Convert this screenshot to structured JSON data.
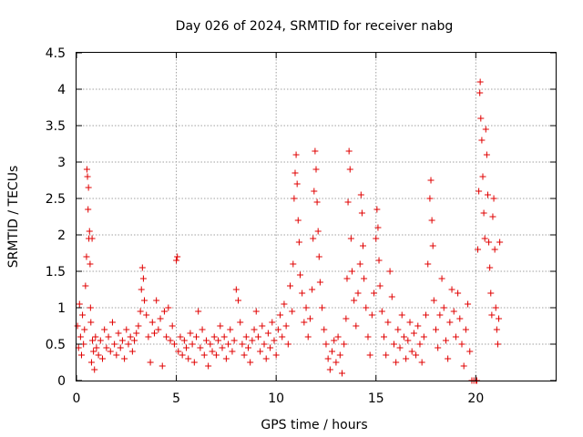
{
  "chart_data": {
    "type": "scatter",
    "title": "Day 026 of 2024, SRMTID for receiver nabg",
    "xlabel": "GPS time / hours",
    "ylabel": "SRMTID / TECUs",
    "xlim": [
      0,
      24
    ],
    "ylim": [
      0,
      4.5
    ],
    "xticks": [
      0,
      5,
      10,
      15,
      20
    ],
    "yticks": [
      0,
      0.5,
      1,
      1.5,
      2,
      2.5,
      3,
      3.5,
      4,
      4.5
    ],
    "xtick_labels": [
      "0",
      "5",
      "10",
      "15",
      "20"
    ],
    "ytick_labels": [
      "0",
      "0.5",
      "1",
      "1.5",
      "2",
      "2.5",
      "3",
      "3.5",
      "4",
      "4.5"
    ],
    "grid": true,
    "marker": "+",
    "color": "#e00000",
    "series": [
      {
        "name": "SRMTID",
        "points": [
          [
            0.05,
            0.75
          ],
          [
            0.1,
            0.45
          ],
          [
            0.15,
            1.05
          ],
          [
            0.2,
            0.6
          ],
          [
            0.25,
            0.35
          ],
          [
            0.3,
            0.9
          ],
          [
            0.35,
            0.5
          ],
          [
            0.4,
            0.7
          ],
          [
            0.45,
            1.3
          ],
          [
            0.5,
            1.7
          ],
          [
            0.52,
            2.9
          ],
          [
            0.55,
            2.8
          ],
          [
            0.58,
            2.35
          ],
          [
            0.6,
            2.65
          ],
          [
            0.62,
            1.95
          ],
          [
            0.65,
            2.05
          ],
          [
            0.68,
            1.6
          ],
          [
            0.7,
            1.0
          ],
          [
            0.72,
            0.8
          ],
          [
            0.75,
            0.25
          ],
          [
            0.78,
            1.95
          ],
          [
            0.8,
            0.55
          ],
          [
            0.85,
            0.4
          ],
          [
            0.9,
            0.15
          ],
          [
            0.95,
            0.6
          ],
          [
            1.0,
            0.45
          ],
          [
            1.1,
            0.35
          ],
          [
            1.2,
            0.55
          ],
          [
            1.3,
            0.3
          ],
          [
            1.4,
            0.7
          ],
          [
            1.5,
            0.45
          ],
          [
            1.6,
            0.6
          ],
          [
            1.7,
            0.4
          ],
          [
            1.8,
            0.8
          ],
          [
            1.9,
            0.5
          ],
          [
            2.0,
            0.35
          ],
          [
            2.1,
            0.65
          ],
          [
            2.2,
            0.45
          ],
          [
            2.3,
            0.55
          ],
          [
            2.4,
            0.3
          ],
          [
            2.5,
            0.7
          ],
          [
            2.6,
            0.5
          ],
          [
            2.7,
            0.6
          ],
          [
            2.8,
            0.4
          ],
          [
            2.9,
            0.55
          ],
          [
            3.0,
            0.65
          ],
          [
            3.1,
            0.75
          ],
          [
            3.2,
            0.95
          ],
          [
            3.25,
            1.25
          ],
          [
            3.3,
            1.55
          ],
          [
            3.35,
            1.4
          ],
          [
            3.4,
            1.1
          ],
          [
            3.5,
            0.9
          ],
          [
            3.6,
            0.6
          ],
          [
            3.7,
            0.25
          ],
          [
            3.8,
            0.8
          ],
          [
            3.9,
            0.65
          ],
          [
            4.0,
            1.1
          ],
          [
            4.1,
            0.7
          ],
          [
            4.2,
            0.85
          ],
          [
            4.3,
            0.2
          ],
          [
            4.4,
            0.95
          ],
          [
            4.5,
            0.6
          ],
          [
            4.6,
            1.0
          ],
          [
            4.7,
            0.55
          ],
          [
            4.8,
            0.75
          ],
          [
            4.9,
            0.5
          ],
          [
            5.0,
            1.65
          ],
          [
            5.05,
            1.7
          ],
          [
            5.1,
            0.4
          ],
          [
            5.2,
            0.6
          ],
          [
            5.3,
            0.35
          ],
          [
            5.4,
            0.55
          ],
          [
            5.5,
            0.45
          ],
          [
            5.6,
            0.3
          ],
          [
            5.7,
            0.65
          ],
          [
            5.8,
            0.5
          ],
          [
            5.9,
            0.25
          ],
          [
            6.0,
            0.6
          ],
          [
            6.1,
            0.95
          ],
          [
            6.2,
            0.45
          ],
          [
            6.3,
            0.7
          ],
          [
            6.4,
            0.35
          ],
          [
            6.5,
            0.55
          ],
          [
            6.6,
            0.2
          ],
          [
            6.7,
            0.5
          ],
          [
            6.8,
            0.4
          ],
          [
            6.9,
            0.6
          ],
          [
            7.0,
            0.35
          ],
          [
            7.1,
            0.55
          ],
          [
            7.2,
            0.75
          ],
          [
            7.3,
            0.45
          ],
          [
            7.4,
            0.6
          ],
          [
            7.5,
            0.3
          ],
          [
            7.6,
            0.5
          ],
          [
            7.7,
            0.7
          ],
          [
            7.8,
            0.4
          ],
          [
            7.9,
            0.55
          ],
          [
            8.0,
            1.25
          ],
          [
            8.1,
            1.1
          ],
          [
            8.2,
            0.8
          ],
          [
            8.3,
            0.5
          ],
          [
            8.4,
            0.35
          ],
          [
            8.5,
            0.6
          ],
          [
            8.6,
            0.45
          ],
          [
            8.7,
            0.25
          ],
          [
            8.8,
            0.55
          ],
          [
            8.9,
            0.7
          ],
          [
            9.0,
            0.95
          ],
          [
            9.1,
            0.6
          ],
          [
            9.2,
            0.4
          ],
          [
            9.3,
            0.75
          ],
          [
            9.4,
            0.5
          ],
          [
            9.5,
            0.3
          ],
          [
            9.6,
            0.65
          ],
          [
            9.7,
            0.45
          ],
          [
            9.8,
            0.8
          ],
          [
            9.9,
            0.55
          ],
          [
            10.0,
            0.35
          ],
          [
            10.1,
            0.7
          ],
          [
            10.2,
            0.9
          ],
          [
            10.3,
            0.6
          ],
          [
            10.4,
            1.05
          ],
          [
            10.5,
            0.75
          ],
          [
            10.6,
            0.5
          ],
          [
            10.7,
            1.3
          ],
          [
            10.8,
            0.95
          ],
          [
            10.85,
            1.6
          ],
          [
            10.9,
            2.5
          ],
          [
            10.95,
            2.85
          ],
          [
            11.0,
            3.1
          ],
          [
            11.05,
            2.7
          ],
          [
            11.1,
            2.2
          ],
          [
            11.15,
            1.9
          ],
          [
            11.2,
            1.45
          ],
          [
            11.3,
            1.2
          ],
          [
            11.4,
            0.8
          ],
          [
            11.5,
            1.0
          ],
          [
            11.6,
            0.6
          ],
          [
            11.7,
            0.85
          ],
          [
            11.8,
            1.25
          ],
          [
            11.85,
            1.95
          ],
          [
            11.9,
            2.6
          ],
          [
            11.95,
            3.15
          ],
          [
            12.0,
            2.9
          ],
          [
            12.05,
            2.45
          ],
          [
            12.1,
            2.05
          ],
          [
            12.15,
            1.7
          ],
          [
            12.2,
            1.35
          ],
          [
            12.3,
            1.0
          ],
          [
            12.4,
            0.7
          ],
          [
            12.5,
            0.5
          ],
          [
            12.6,
            0.3
          ],
          [
            12.7,
            0.15
          ],
          [
            12.8,
            0.4
          ],
          [
            12.9,
            0.55
          ],
          [
            13.0,
            0.25
          ],
          [
            13.1,
            0.6
          ],
          [
            13.2,
            0.35
          ],
          [
            13.3,
            0.1
          ],
          [
            13.4,
            0.5
          ],
          [
            13.5,
            0.85
          ],
          [
            13.55,
            1.4
          ],
          [
            13.6,
            2.45
          ],
          [
            13.65,
            3.15
          ],
          [
            13.7,
            2.9
          ],
          [
            13.75,
            1.95
          ],
          [
            13.8,
            1.5
          ],
          [
            13.9,
            1.1
          ],
          [
            14.0,
            0.75
          ],
          [
            14.1,
            1.2
          ],
          [
            14.2,
            1.6
          ],
          [
            14.25,
            2.55
          ],
          [
            14.3,
            2.3
          ],
          [
            14.35,
            1.85
          ],
          [
            14.4,
            1.4
          ],
          [
            14.5,
            1.0
          ],
          [
            14.6,
            0.6
          ],
          [
            14.7,
            0.35
          ],
          [
            14.8,
            0.9
          ],
          [
            14.9,
            1.2
          ],
          [
            15.0,
            1.95
          ],
          [
            15.05,
            2.35
          ],
          [
            15.1,
            2.1
          ],
          [
            15.15,
            1.65
          ],
          [
            15.2,
            1.3
          ],
          [
            15.3,
            0.95
          ],
          [
            15.4,
            0.6
          ],
          [
            15.5,
            0.35
          ],
          [
            15.6,
            0.8
          ],
          [
            15.7,
            1.5
          ],
          [
            15.8,
            1.15
          ],
          [
            15.9,
            0.5
          ],
          [
            16.0,
            0.25
          ],
          [
            16.1,
            0.7
          ],
          [
            16.2,
            0.45
          ],
          [
            16.3,
            0.9
          ],
          [
            16.4,
            0.6
          ],
          [
            16.5,
            0.3
          ],
          [
            16.6,
            0.55
          ],
          [
            16.7,
            0.8
          ],
          [
            16.8,
            0.4
          ],
          [
            16.9,
            0.65
          ],
          [
            17.0,
            0.35
          ],
          [
            17.1,
            0.75
          ],
          [
            17.2,
            0.5
          ],
          [
            17.3,
            0.25
          ],
          [
            17.4,
            0.6
          ],
          [
            17.5,
            0.9
          ],
          [
            17.6,
            1.6
          ],
          [
            17.7,
            2.5
          ],
          [
            17.75,
            2.75
          ],
          [
            17.8,
            2.2
          ],
          [
            17.85,
            1.85
          ],
          [
            17.9,
            1.1
          ],
          [
            18.0,
            0.7
          ],
          [
            18.1,
            0.45
          ],
          [
            18.2,
            0.9
          ],
          [
            18.3,
            1.4
          ],
          [
            18.4,
            1.0
          ],
          [
            18.5,
            0.55
          ],
          [
            18.6,
            0.3
          ],
          [
            18.7,
            0.8
          ],
          [
            18.8,
            1.25
          ],
          [
            18.9,
            0.95
          ],
          [
            19.0,
            0.6
          ],
          [
            19.1,
            1.2
          ],
          [
            19.2,
            0.85
          ],
          [
            19.3,
            0.5
          ],
          [
            19.4,
            0.2
          ],
          [
            19.5,
            0.7
          ],
          [
            19.6,
            1.05
          ],
          [
            19.7,
            0.4
          ],
          [
            19.8,
            0.0
          ],
          [
            19.9,
            0.0
          ],
          [
            20.0,
            0.0
          ],
          [
            20.05,
            0.0
          ],
          [
            20.1,
            1.8
          ],
          [
            20.15,
            2.6
          ],
          [
            20.2,
            3.95
          ],
          [
            20.22,
            4.1
          ],
          [
            20.25,
            3.6
          ],
          [
            20.3,
            3.3
          ],
          [
            20.35,
            2.8
          ],
          [
            20.4,
            2.3
          ],
          [
            20.45,
            1.95
          ],
          [
            20.5,
            3.45
          ],
          [
            20.55,
            3.1
          ],
          [
            20.6,
            2.55
          ],
          [
            20.65,
            1.9
          ],
          [
            20.7,
            1.55
          ],
          [
            20.75,
            1.2
          ],
          [
            20.8,
            0.9
          ],
          [
            20.85,
            2.25
          ],
          [
            20.9,
            2.5
          ],
          [
            20.95,
            1.8
          ],
          [
            21.0,
            1.0
          ],
          [
            21.05,
            0.7
          ],
          [
            21.1,
            0.5
          ],
          [
            21.15,
            0.85
          ],
          [
            21.2,
            1.9
          ]
        ]
      }
    ]
  }
}
